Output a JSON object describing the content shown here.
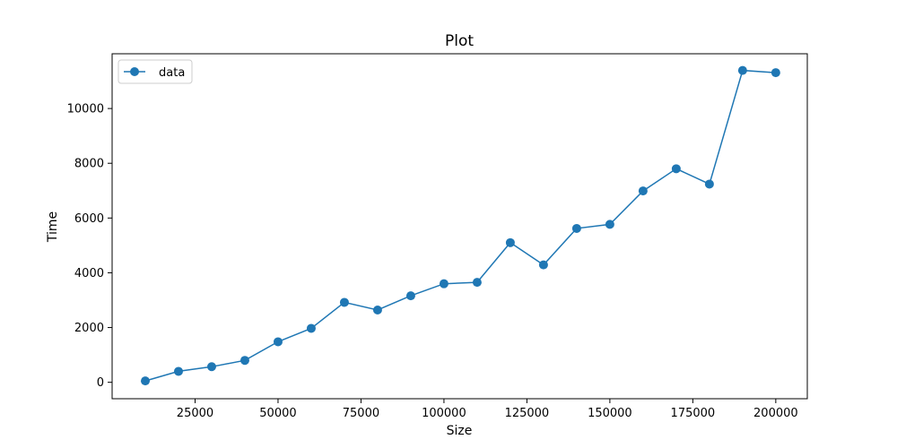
{
  "chart_data": {
    "type": "line",
    "title": "Plot",
    "xlabel": "Size",
    "ylabel": "Time",
    "xlim": [
      0,
      209500
    ],
    "ylim": [
      -600,
      12000
    ],
    "x_ticks": [
      25000,
      50000,
      75000,
      100000,
      125000,
      150000,
      175000,
      200000
    ],
    "y_ticks": [
      0,
      2000,
      4000,
      6000,
      8000,
      10000
    ],
    "grid": false,
    "legend": {
      "position": "top-left"
    },
    "series": [
      {
        "name": "data",
        "color": "#1f77b4",
        "marker": "circle",
        "x": [
          10000,
          20000,
          30000,
          40000,
          50000,
          60000,
          70000,
          80000,
          90000,
          100000,
          110000,
          120000,
          130000,
          140000,
          150000,
          160000,
          170000,
          180000,
          190000,
          200000
        ],
        "y": [
          50,
          400,
          570,
          800,
          1480,
          1970,
          2920,
          2640,
          3160,
          3600,
          3650,
          5100,
          4290,
          5620,
          5770,
          6990,
          7800,
          7240,
          11390,
          11310
        ]
      }
    ]
  }
}
